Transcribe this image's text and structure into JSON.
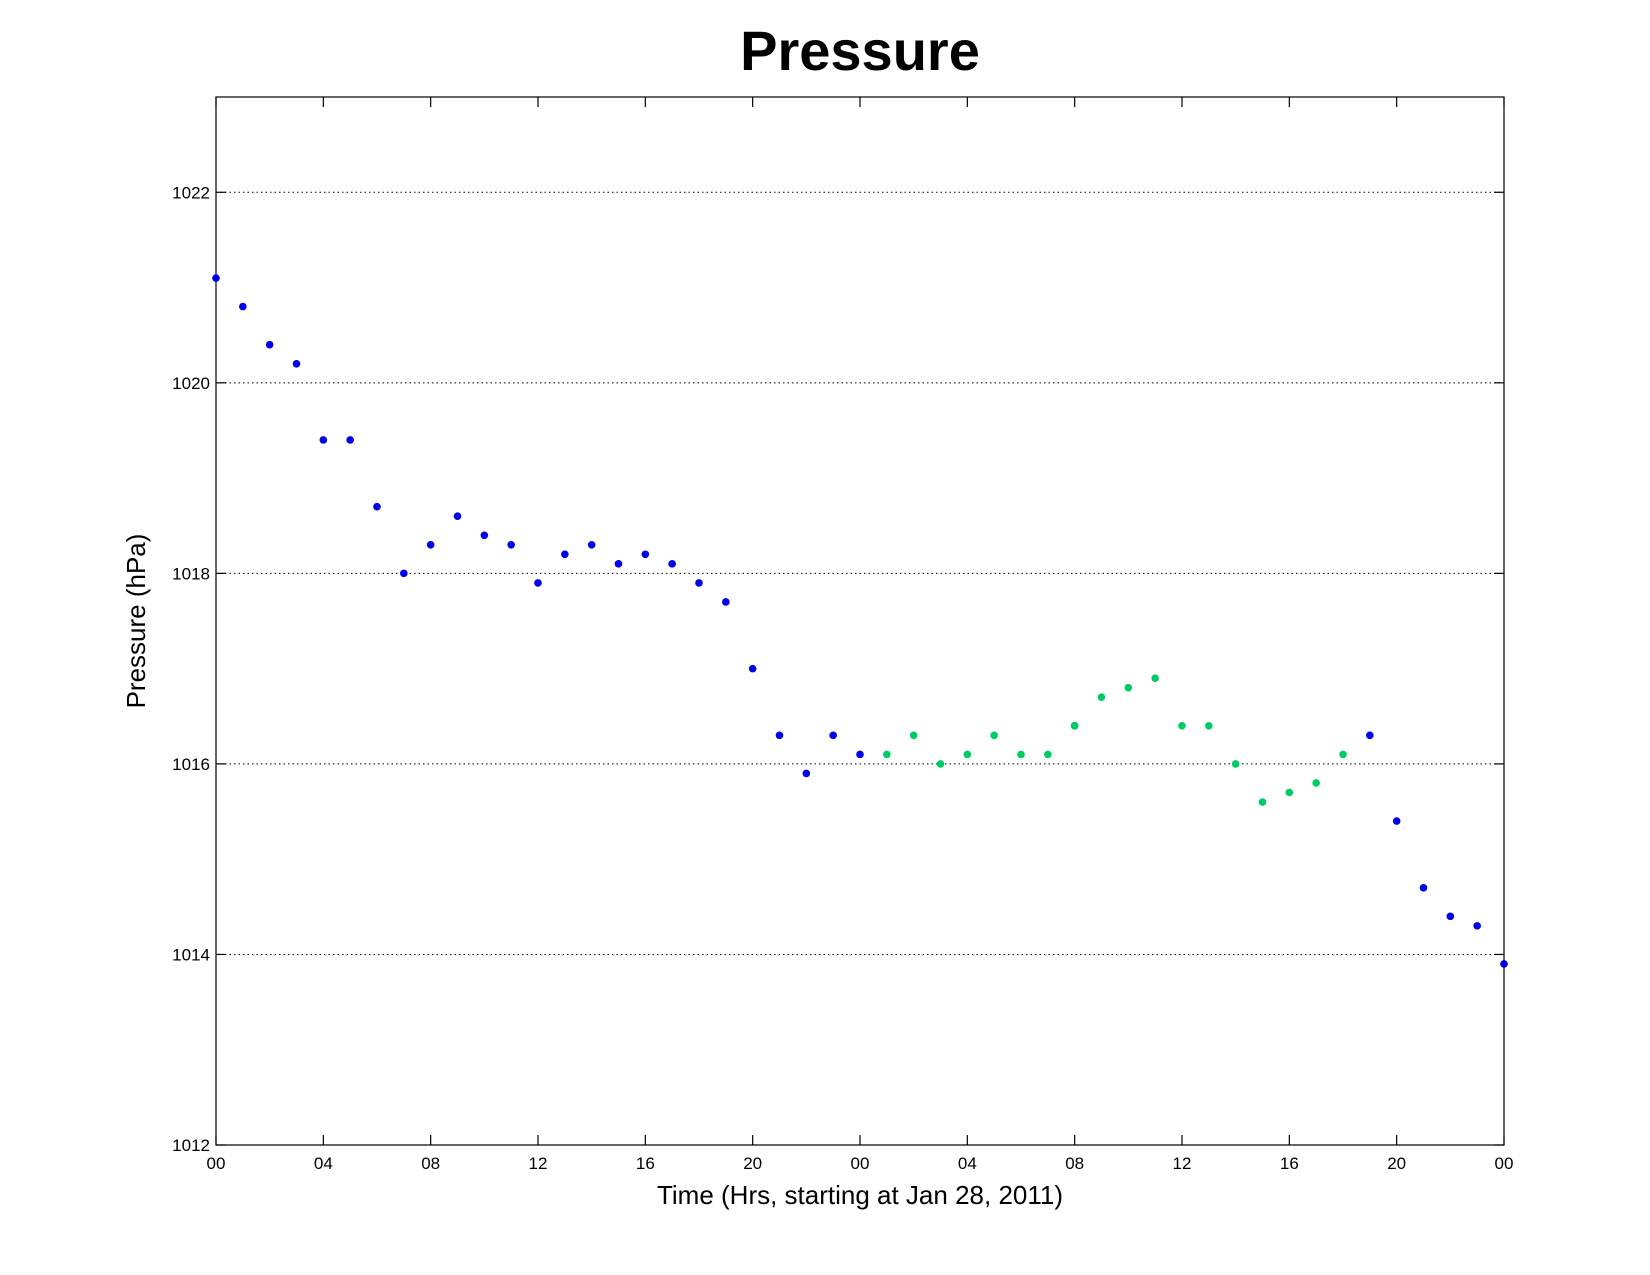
{
  "chart_data": {
    "type": "scatter",
    "title": "Pressure",
    "xlabel": "Time (Hrs, starting at Jan 28, 2011)",
    "ylabel": "Pressure (hPa)",
    "xlim": [
      0,
      48
    ],
    "ylim": [
      1012,
      1023
    ],
    "x_tick_values": [
      0,
      4,
      8,
      12,
      16,
      20,
      24,
      28,
      32,
      36,
      40,
      44,
      48
    ],
    "x_tick_labels": [
      "00",
      "04",
      "08",
      "12",
      "16",
      "20",
      "00",
      "04",
      "08",
      "12",
      "16",
      "20",
      "00"
    ],
    "y_ticks": [
      1012,
      1014,
      1016,
      1018,
      1020,
      1022
    ],
    "y_grid": true,
    "colors": {
      "series_a": "#0000ee",
      "series_b": "#00cc66"
    },
    "series": [
      {
        "color_key": "series_a",
        "x": [
          0,
          1,
          2,
          3,
          4,
          5,
          6,
          7,
          8,
          9,
          10,
          11,
          12,
          13,
          14,
          15,
          16,
          17,
          18,
          19,
          20,
          21,
          22,
          23,
          24,
          32,
          43,
          44,
          45,
          46,
          47,
          48
        ],
        "y": [
          1021.1,
          1020.8,
          1020.4,
          1020.2,
          1019.4,
          1019.4,
          1018.7,
          1018.0,
          1018.3,
          1018.6,
          1018.4,
          1018.3,
          1017.9,
          1018.2,
          1018.3,
          1018.1,
          1018.2,
          1018.1,
          1017.9,
          1017.7,
          1017.0,
          1016.3,
          1015.9,
          1016.3,
          1016.1,
          1016.4,
          1016.3,
          1015.4,
          1014.7,
          1014.4,
          1014.3,
          1013.9
        ]
      },
      {
        "color_key": "series_b",
        "x": [
          25,
          26,
          27,
          28,
          29,
          30,
          31,
          32,
          33,
          34,
          35,
          36,
          37,
          38,
          39,
          40,
          41,
          42
        ],
        "y": [
          1016.1,
          1016.3,
          1016.0,
          1016.1,
          1016.3,
          1016.1,
          1016.1,
          1016.4,
          1016.7,
          1016.8,
          1016.9,
          1016.4,
          1016.4,
          1016.0,
          1015.6,
          1015.7,
          1015.8,
          1016.1
        ]
      }
    ]
  }
}
